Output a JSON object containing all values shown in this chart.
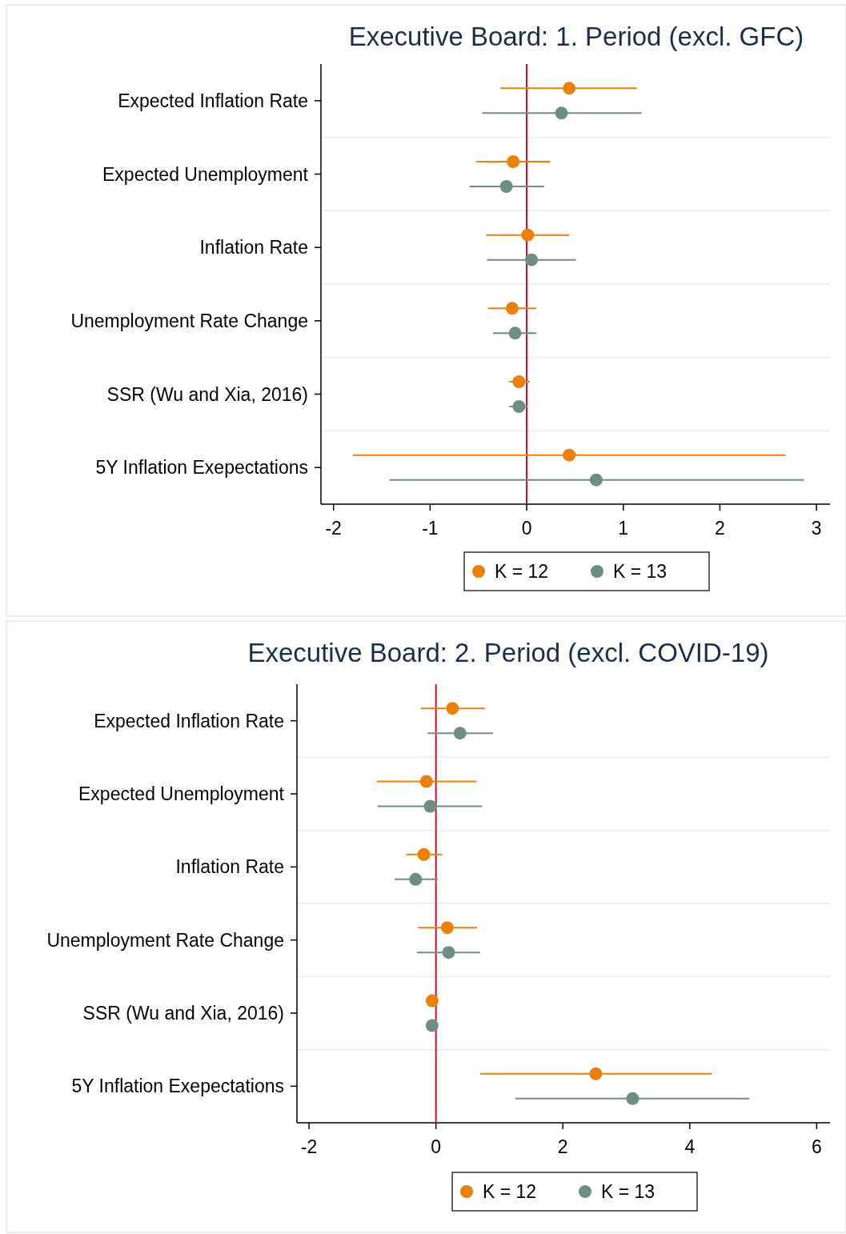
{
  "chart_data": [
    {
      "type": "scatter",
      "orientation": "horizontal",
      "title": "Executive Board: 1. Period (excl. GFC)",
      "categories": [
        "Expected Inflation Rate",
        "Expected Unemployment",
        "Inflation Rate",
        "Unemployment Rate Change",
        "SSR (Wu and Xia, 2016)",
        "5Y Inflation Exepectations"
      ],
      "series": [
        {
          "name": "K = 12",
          "color": "#e8800a",
          "values": [
            0.44,
            -0.14,
            0.01,
            -0.15,
            -0.08,
            0.44
          ],
          "errors": [
            [
              -0.27,
              1.14
            ],
            [
              -0.52,
              0.24
            ],
            [
              -0.42,
              0.44
            ],
            [
              -0.4,
              0.1
            ],
            [
              -0.18,
              0.03
            ],
            [
              -1.8,
              2.68
            ]
          ]
        },
        {
          "name": "K = 13",
          "color": "#6e8e84",
          "values": [
            0.36,
            -0.21,
            0.05,
            -0.12,
            -0.08,
            0.72
          ],
          "errors": [
            [
              -0.46,
              1.19
            ],
            [
              -0.59,
              0.18
            ],
            [
              -0.41,
              0.51
            ],
            [
              -0.35,
              0.1
            ],
            [
              -0.18,
              0.01
            ],
            [
              -1.42,
              2.87
            ]
          ]
        }
      ],
      "xlim": [
        -2.13,
        3.14
      ],
      "xticks": [
        -2,
        -1,
        0,
        1,
        2,
        3
      ],
      "ref_lines": [
        {
          "axis": "x",
          "value": 0,
          "color": "#c8102e"
        }
      ],
      "grid": "y",
      "legend": "bottom",
      "marker": "circle"
    },
    {
      "type": "scatter",
      "orientation": "horizontal",
      "title": "Executive Board: 2. Period (excl. COVID-19)",
      "categories": [
        "Expected Inflation Rate",
        "Expected Unemployment",
        "Inflation Rate",
        "Unemployment Rate Change",
        "SSR (Wu and Xia, 2016)",
        "5Y Inflation Exepectations"
      ],
      "series": [
        {
          "name": "K = 12",
          "color": "#e8800a",
          "values": [
            0.26,
            -0.15,
            -0.19,
            0.18,
            -0.06,
            2.52
          ],
          "errors": [
            [
              -0.24,
              0.77
            ],
            [
              -0.93,
              0.64
            ],
            [
              -0.47,
              0.1
            ],
            [
              -0.28,
              0.65
            ],
            null,
            [
              0.7,
              4.35
            ]
          ]
        },
        {
          "name": "K = 13",
          "color": "#6e8e84",
          "values": [
            0.38,
            -0.09,
            -0.32,
            0.2,
            -0.06,
            3.1
          ],
          "errors": [
            [
              -0.13,
              0.9
            ],
            [
              -0.92,
              0.73
            ],
            [
              -0.65,
              0.03
            ],
            [
              -0.3,
              0.7
            ],
            null,
            [
              1.25,
              4.94
            ]
          ]
        }
      ],
      "xlim": [
        -2.19,
        6.21
      ],
      "xticks": [
        -2,
        0,
        2,
        4,
        6
      ],
      "ref_lines": [
        {
          "axis": "x",
          "value": 0,
          "color": "#c8102e"
        }
      ],
      "grid": "y",
      "legend": "bottom",
      "marker": "circle"
    }
  ]
}
